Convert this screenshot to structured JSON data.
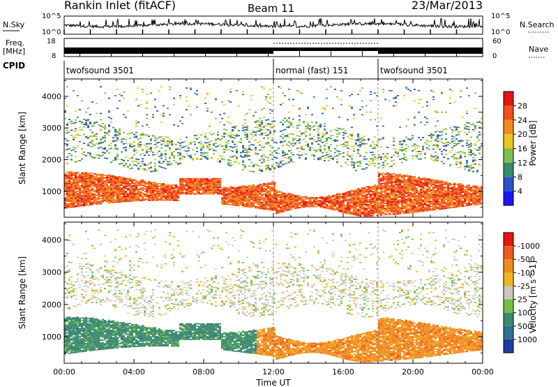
{
  "header": {
    "station": "Rankin Inlet (fitACF)",
    "beam": "Beam 11",
    "date": "23/Mar/2013"
  },
  "panels": {
    "nsky_label": "N.Sky",
    "nsearch_label": "N.Search",
    "nsky_ticks": [
      "10^5",
      "10^0"
    ],
    "nsearch_ticks": [
      "10^5",
      "10^0"
    ],
    "freq_label_1": "Freq.",
    "freq_label_2": "[MHz]",
    "freq_ticks": [
      "18",
      "8"
    ],
    "nave_label": "Nave",
    "nave_ticks": [
      "60",
      "0"
    ],
    "cpid_label": "CPID",
    "cpid_segments": [
      {
        "label": "twofsound 3501",
        "start": 0,
        "end": 12
      },
      {
        "label": "normal (fast) 151",
        "start": 12,
        "end": 18
      },
      {
        "label": "twofsound 3501",
        "start": 18,
        "end": 24
      }
    ]
  },
  "chart_data": [
    {
      "type": "heatmap",
      "title": "",
      "ylabel": "Slant Range [km]",
      "xlabel": "",
      "xlim": [
        0,
        24
      ],
      "ylim": [
        180,
        4550
      ],
      "yticks": [
        1000,
        2000,
        3000,
        4000
      ],
      "colorbar": {
        "label": "Power [dB]",
        "ticks": [
          "4",
          "8",
          "12",
          "16",
          "20",
          "24",
          "28"
        ],
        "colors": [
          "#1e14f0",
          "#2a52c8",
          "#3a8a6c",
          "#7cc050",
          "#e8c81e",
          "#f08c1e",
          "#f0501e",
          "#e61414"
        ]
      },
      "segment_boundaries": [
        12,
        18
      ]
    },
    {
      "type": "heatmap",
      "title": "",
      "ylabel": "Slant Range [km]",
      "xlabel": "Time UT",
      "xlim": [
        0,
        24
      ],
      "ylim": [
        180,
        4550
      ],
      "yticks": [
        1000,
        2000,
        3000,
        4000
      ],
      "xticks": [
        "00:00",
        "04:00",
        "08:00",
        "12:00",
        "16:00",
        "20:00",
        "00:00"
      ],
      "colorbar": {
        "label": "Velocity [m s^-1]",
        "ticks": [
          "1000",
          "500",
          "100",
          "25",
          "-25",
          "-100",
          "-500",
          "-1000"
        ],
        "colors": [
          "#1e3ca0",
          "#2f6f8f",
          "#3b8a6a",
          "#6fc04a",
          "#c8c8c0",
          "#f0b41e",
          "#f08c1e",
          "#f05a1e",
          "#e61414"
        ]
      },
      "segment_boundaries": [
        12,
        18
      ]
    }
  ]
}
